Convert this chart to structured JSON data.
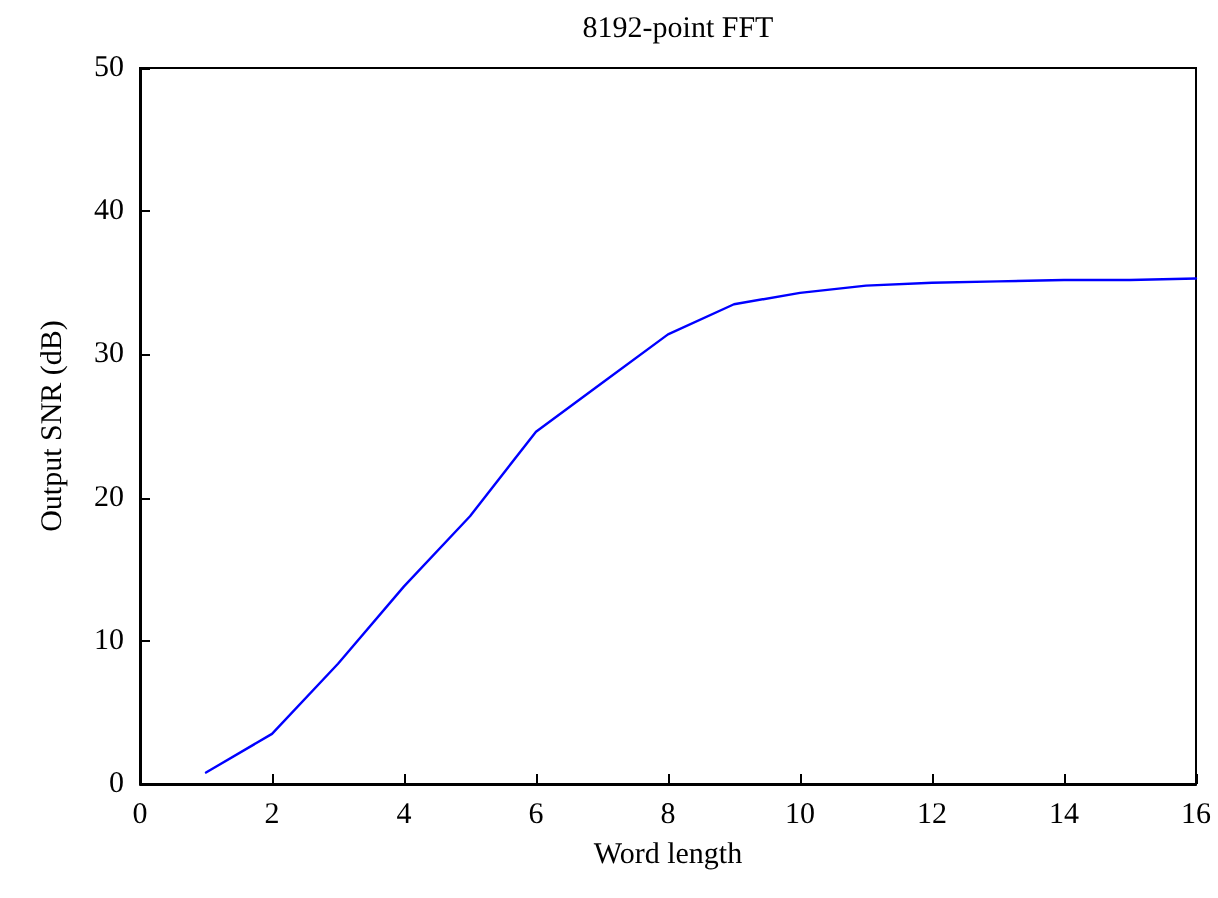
{
  "chart_data": {
    "type": "line",
    "title": "8192-point FFT",
    "xlabel": "Word length",
    "ylabel": "Output SNR (dB)",
    "x": [
      1,
      2,
      3,
      4,
      5,
      6,
      7,
      8,
      9,
      10,
      11,
      12,
      13,
      14,
      15,
      16
    ],
    "series": [
      {
        "color": "#0000ff",
        "values": [
          0.8,
          3.5,
          8.4,
          13.8,
          18.7,
          24.6,
          28,
          31.4,
          33.5,
          34.3,
          34.8,
          35,
          35.1,
          35.2,
          35.2,
          35.3
        ]
      }
    ],
    "xlim": [
      0,
      16
    ],
    "xticks": [
      0,
      2,
      4,
      6,
      8,
      10,
      12,
      14,
      16
    ],
    "ylim": [
      0,
      50
    ],
    "yticks": [
      0,
      10,
      20,
      30,
      40,
      50
    ],
    "grid": false,
    "marker": "none",
    "line_style": "solid"
  }
}
